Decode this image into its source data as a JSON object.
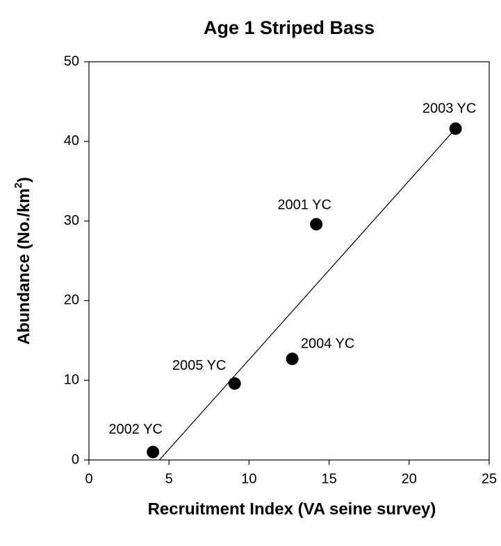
{
  "chart_data": {
    "type": "scatter",
    "title": "Age 1 Striped Bass",
    "xlabel": "Recruitment Index (VA seine survey)",
    "ylabel_parts": [
      "Abundance (No./km",
      "2",
      ")"
    ],
    "x": [
      4.0,
      9.1,
      12.7,
      14.2,
      22.9
    ],
    "values": [
      1.0,
      9.6,
      12.7,
      29.6,
      41.6
    ],
    "labels": [
      "2002 YC",
      "2005 YC",
      "2004 YC",
      "2001 YC",
      "2003 YC"
    ],
    "color": "#000000",
    "fit": {
      "x": [
        4.4,
        22.9
      ],
      "y": [
        0,
        41.6
      ]
    },
    "xlim": [
      0,
      25
    ],
    "xticks": [
      0,
      5,
      10,
      15,
      20,
      25
    ],
    "ylim": [
      0,
      50
    ],
    "yticks": [
      0,
      10,
      20,
      30,
      40,
      50
    ],
    "grid": false
  }
}
